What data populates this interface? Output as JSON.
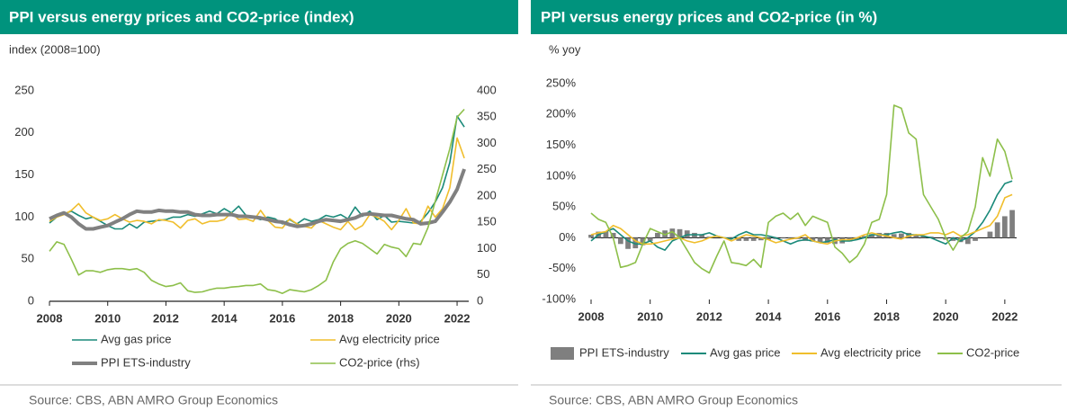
{
  "chart_data": [
    {
      "type": "line",
      "title": "PPI versus energy prices and CO2-price (index)",
      "y_label": "index (2008=100)",
      "source": "Source: CBS, ABN AMRO Group Economics",
      "x": [
        2008,
        2008.25,
        2008.5,
        2008.75,
        2009,
        2009.25,
        2009.5,
        2009.75,
        2010,
        2010.25,
        2010.5,
        2010.75,
        2011,
        2011.25,
        2011.5,
        2011.75,
        2012,
        2012.25,
        2012.5,
        2012.75,
        2013,
        2013.25,
        2013.5,
        2013.75,
        2014,
        2014.25,
        2014.5,
        2014.75,
        2015,
        2015.25,
        2015.5,
        2015.75,
        2016,
        2016.25,
        2016.5,
        2016.75,
        2017,
        2017.25,
        2017.5,
        2017.75,
        2018,
        2018.25,
        2018.5,
        2018.75,
        2019,
        2019.25,
        2019.5,
        2019.75,
        2020,
        2020.25,
        2020.5,
        2020.75,
        2021,
        2021.25,
        2021.5,
        2021.75,
        2022,
        2022.25
      ],
      "xlim": [
        2008,
        2022.4
      ],
      "xticks": [
        2008,
        2010,
        2012,
        2014,
        2016,
        2018,
        2020,
        2022
      ],
      "ylim": [
        0,
        250
      ],
      "yticks": [
        0,
        50,
        100,
        150,
        200,
        250
      ],
      "y2lim": [
        0,
        400
      ],
      "y2ticks": [
        0,
        50,
        100,
        150,
        200,
        250,
        300,
        350,
        400
      ],
      "series": [
        {
          "name": "Avg gas price",
          "color": "#1a8a7a",
          "width": 1.6,
          "values": [
            93,
            100,
            104,
            107,
            102,
            98,
            100,
            95,
            90,
            86,
            86,
            92,
            87,
            94,
            95,
            96,
            97,
            100,
            100,
            103,
            101,
            104,
            107,
            104,
            110,
            105,
            113,
            102,
            100,
            97,
            100,
            98,
            92,
            97,
            92,
            98,
            95,
            97,
            102,
            100,
            103,
            98,
            112,
            101,
            107,
            97,
            102,
            94,
            95,
            94,
            93,
            95,
            105,
            118,
            135,
            165,
            220,
            207
          ]
        },
        {
          "name": "Avg electricity price",
          "color": "#f0be2c",
          "width": 1.6,
          "values": [
            95,
            100,
            103,
            108,
            116,
            105,
            100,
            96,
            98,
            103,
            98,
            94,
            96,
            95,
            92,
            97,
            96,
            94,
            87,
            96,
            98,
            92,
            95,
            95,
            97,
            105,
            97,
            98,
            95,
            108,
            96,
            88,
            87,
            98,
            92,
            89,
            87,
            96,
            92,
            88,
            85,
            95,
            85,
            90,
            103,
            100,
            95,
            85,
            96,
            110,
            93,
            92,
            113,
            100,
            110,
            135,
            194,
            170
          ]
        },
        {
          "name": "PPI ETS-industry",
          "color": "#808080",
          "width": 4,
          "values": [
            98,
            102,
            105,
            100,
            92,
            86,
            86,
            88,
            90,
            94,
            98,
            103,
            107,
            106,
            106,
            108,
            107,
            107,
            106,
            106,
            103,
            102,
            102,
            103,
            103,
            103,
            101,
            101,
            100,
            99,
            97,
            95,
            94,
            91,
            89,
            90,
            92,
            95,
            97,
            96,
            95,
            97,
            99,
            103,
            104,
            103,
            102,
            102,
            100,
            98,
            97,
            92,
            93,
            95,
            106,
            118,
            133,
            157
          ]
        },
        {
          "name": "CO2-price (rhs)",
          "color": "#8dbf4a",
          "width": 1.6,
          "axis": "y2",
          "values": [
            95,
            113,
            108,
            80,
            50,
            58,
            58,
            55,
            60,
            62,
            62,
            60,
            62,
            55,
            40,
            33,
            28,
            30,
            35,
            20,
            17,
            18,
            22,
            25,
            25,
            27,
            28,
            30,
            30,
            33,
            22,
            20,
            15,
            22,
            20,
            18,
            22,
            30,
            40,
            75,
            100,
            110,
            115,
            110,
            100,
            90,
            108,
            103,
            100,
            85,
            110,
            108,
            140,
            190,
            240,
            290,
            350,
            365
          ]
        }
      ]
    },
    {
      "type": "bar-line",
      "title": "PPI versus energy prices and CO2-price (in %)",
      "y_label": "% yoy",
      "source": "Source: CBS, ABN AMRO Group Economics",
      "x": [
        2008,
        2008.25,
        2008.5,
        2008.75,
        2009,
        2009.25,
        2009.5,
        2009.75,
        2010,
        2010.25,
        2010.5,
        2010.75,
        2011,
        2011.25,
        2011.5,
        2011.75,
        2012,
        2012.25,
        2012.5,
        2012.75,
        2013,
        2013.25,
        2013.5,
        2013.75,
        2014,
        2014.25,
        2014.5,
        2014.75,
        2015,
        2015.25,
        2015.5,
        2015.75,
        2016,
        2016.25,
        2016.5,
        2016.75,
        2017,
        2017.25,
        2017.5,
        2017.75,
        2018,
        2018.25,
        2018.5,
        2018.75,
        2019,
        2019.25,
        2019.5,
        2019.75,
        2020,
        2020.25,
        2020.5,
        2020.75,
        2021,
        2021.25,
        2021.5,
        2021.75,
        2022,
        2022.25
      ],
      "xlim": [
        2008,
        2022.4
      ],
      "xticks": [
        2008,
        2010,
        2012,
        2014,
        2016,
        2018,
        2020,
        2022
      ],
      "ylim": [
        -100,
        250
      ],
      "yticks": [
        {
          "value": -100,
          "label": "-100%"
        },
        {
          "value": -50,
          "label": "-50%"
        },
        {
          "value": 0,
          "label": "0%"
        },
        {
          "value": 50,
          "label": "50%"
        },
        {
          "value": 100,
          "label": "100%"
        },
        {
          "value": 150,
          "label": "150%"
        },
        {
          "value": 200,
          "label": "200%"
        },
        {
          "value": 250,
          "label": "250%"
        }
      ],
      "series": [
        {
          "name": "PPI ETS-industry",
          "type": "bar",
          "color": "#7f7f7f",
          "values": [
            5,
            10,
            10,
            8,
            -10,
            -18,
            -17,
            -12,
            -5,
            8,
            12,
            15,
            14,
            12,
            8,
            5,
            2,
            0,
            0,
            1,
            -5,
            -5,
            -5,
            -4,
            -3,
            -2,
            -1,
            -1,
            -2,
            -5,
            -6,
            -8,
            -8,
            -10,
            -9,
            -6,
            -3,
            3,
            6,
            8,
            8,
            6,
            7,
            8,
            5,
            3,
            2,
            0,
            -3,
            -5,
            -7,
            -10,
            -5,
            0,
            10,
            25,
            35,
            45
          ]
        },
        {
          "name": "Avg gas price",
          "type": "line",
          "color": "#1a8a7a",
          "values": [
            -5,
            5,
            10,
            15,
            5,
            -5,
            -10,
            -10,
            -5,
            -15,
            -20,
            -5,
            0,
            5,
            5,
            5,
            8,
            3,
            0,
            -2,
            5,
            10,
            5,
            5,
            3,
            0,
            -5,
            -10,
            -5,
            -3,
            -5,
            -8,
            -6,
            -3,
            -5,
            -5,
            -3,
            0,
            5,
            5,
            5,
            8,
            10,
            5,
            5,
            3,
            0,
            -5,
            -10,
            0,
            -5,
            0,
            10,
            25,
            45,
            70,
            88,
            92
          ]
        },
        {
          "name": "Avg electricity price",
          "type": "line",
          "color": "#f0be2c",
          "values": [
            5,
            8,
            10,
            20,
            15,
            5,
            -5,
            -10,
            -10,
            -8,
            -5,
            -2,
            0,
            -5,
            -8,
            -5,
            0,
            3,
            0,
            -5,
            0,
            5,
            3,
            0,
            -3,
            -8,
            -5,
            -2,
            0,
            5,
            -5,
            -8,
            -10,
            -5,
            -3,
            -3,
            0,
            5,
            8,
            5,
            3,
            0,
            -2,
            3,
            5,
            5,
            8,
            8,
            5,
            10,
            3,
            5,
            10,
            15,
            20,
            35,
            65,
            70
          ]
        },
        {
          "name": "CO2-price",
          "type": "line",
          "color": "#8dbf4a",
          "values": [
            40,
            30,
            25,
            0,
            -48,
            -45,
            -40,
            -10,
            15,
            10,
            5,
            10,
            0,
            -20,
            -40,
            -50,
            -57,
            -30,
            -5,
            -40,
            -42,
            -45,
            -35,
            -48,
            25,
            35,
            40,
            30,
            40,
            20,
            35,
            30,
            25,
            -15,
            -25,
            -40,
            -30,
            -10,
            25,
            30,
            70,
            215,
            210,
            170,
            160,
            70,
            50,
            30,
            0,
            -20,
            0,
            10,
            50,
            130,
            100,
            160,
            140,
            95
          ]
        }
      ]
    }
  ]
}
